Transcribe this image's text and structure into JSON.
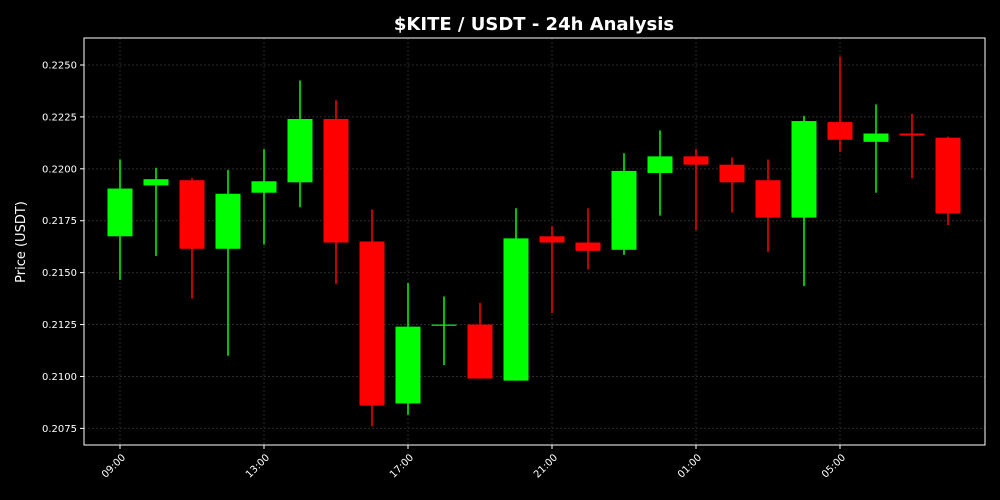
{
  "chart_data": {
    "type": "candlestick",
    "title": "$KITE / USDT - 24h Analysis",
    "xlabel": "",
    "ylabel": "Price (USDT)",
    "ylim": [
      0.2067,
      0.2263
    ],
    "y_ticks": [
      0.2075,
      0.21,
      0.2125,
      0.215,
      0.2175,
      0.22,
      0.2225,
      0.225
    ],
    "y_tick_labels": [
      "0.2075",
      "0.2100",
      "0.2125",
      "0.2150",
      "0.2175",
      "0.2200",
      "0.2225",
      "0.2250"
    ],
    "x_tick_labels": [
      {
        "index": 0,
        "label": "09:00"
      },
      {
        "index": 4,
        "label": "13:00"
      },
      {
        "index": 8,
        "label": "17:00"
      },
      {
        "index": 12,
        "label": "21:00"
      },
      {
        "index": 16,
        "label": "01:00"
      },
      {
        "index": 20,
        "label": "05:00"
      }
    ],
    "grid": true,
    "colors": {
      "up": "#00ff00",
      "down": "#ff0000",
      "background": "#000000",
      "axes": "#ffffff",
      "grid": "#2a2a2a"
    },
    "candles": [
      {
        "open": 0.21675,
        "high": 0.22045,
        "low": 0.21465,
        "close": 0.21905
      },
      {
        "open": 0.2192,
        "high": 0.22005,
        "low": 0.2158,
        "close": 0.2195
      },
      {
        "open": 0.21945,
        "high": 0.21955,
        "low": 0.21375,
        "close": 0.21615
      },
      {
        "open": 0.21615,
        "high": 0.21995,
        "low": 0.211,
        "close": 0.2188
      },
      {
        "open": 0.21885,
        "high": 0.22095,
        "low": 0.21635,
        "close": 0.2194
      },
      {
        "open": 0.21935,
        "high": 0.22425,
        "low": 0.21815,
        "close": 0.2224
      },
      {
        "open": 0.2224,
        "high": 0.2233,
        "low": 0.21445,
        "close": 0.21645
      },
      {
        "open": 0.2165,
        "high": 0.21805,
        "low": 0.2076,
        "close": 0.2086
      },
      {
        "open": 0.2087,
        "high": 0.2145,
        "low": 0.20815,
        "close": 0.2124
      },
      {
        "open": 0.2125,
        "high": 0.21385,
        "low": 0.21055,
        "close": 0.2125
      },
      {
        "open": 0.2125,
        "high": 0.21355,
        "low": 0.2099,
        "close": 0.2099
      },
      {
        "open": 0.2098,
        "high": 0.2181,
        "low": 0.2098,
        "close": 0.21665
      },
      {
        "open": 0.21675,
        "high": 0.21725,
        "low": 0.21305,
        "close": 0.21645
      },
      {
        "open": 0.21645,
        "high": 0.2181,
        "low": 0.21515,
        "close": 0.21605
      },
      {
        "open": 0.2161,
        "high": 0.22075,
        "low": 0.21585,
        "close": 0.2199
      },
      {
        "open": 0.2198,
        "high": 0.22185,
        "low": 0.21775,
        "close": 0.2206
      },
      {
        "open": 0.2206,
        "high": 0.22095,
        "low": 0.21705,
        "close": 0.2202
      },
      {
        "open": 0.2202,
        "high": 0.22055,
        "low": 0.2179,
        "close": 0.21935
      },
      {
        "open": 0.21945,
        "high": 0.22045,
        "low": 0.216,
        "close": 0.21765
      },
      {
        "open": 0.21765,
        "high": 0.22255,
        "low": 0.21435,
        "close": 0.2223
      },
      {
        "open": 0.22225,
        "high": 0.2254,
        "low": 0.2208,
        "close": 0.2214
      },
      {
        "open": 0.2213,
        "high": 0.2231,
        "low": 0.21885,
        "close": 0.2217
      },
      {
        "open": 0.2217,
        "high": 0.22265,
        "low": 0.21955,
        "close": 0.2216
      },
      {
        "open": 0.2215,
        "high": 0.22155,
        "low": 0.2173,
        "close": 0.21785
      }
    ]
  }
}
